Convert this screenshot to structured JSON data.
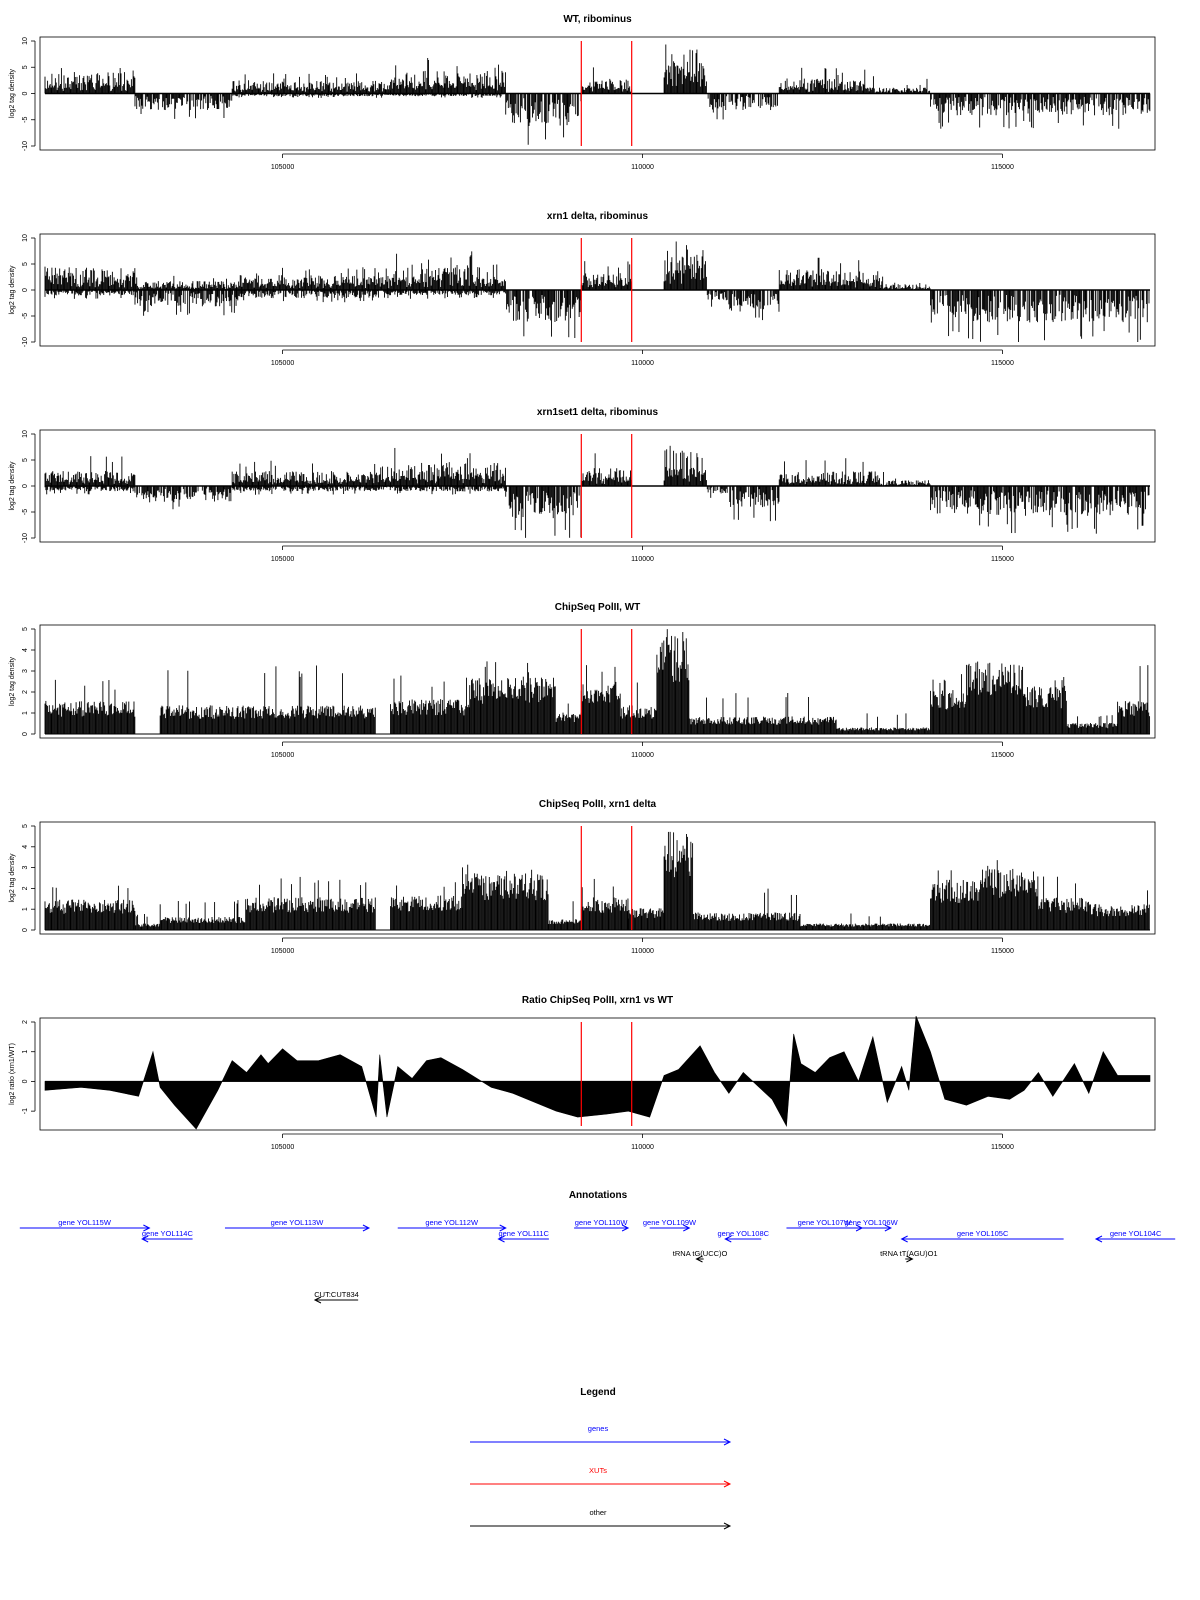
{
  "colors": {
    "gene": "#0000ff",
    "xut": "#ff0000",
    "other": "#000000",
    "marker": "#ff0000",
    "bar": "#000000"
  },
  "markers_x": [
    109150,
    109850
  ],
  "chart_data": [
    {
      "type": "bar",
      "title": "WT, ribominus",
      "ylabel": "log2 tag density",
      "xlim": [
        101700,
        117050
      ],
      "ylim": [
        -10,
        10
      ],
      "yticks": [
        "-10",
        "-5",
        "0",
        "5",
        "10"
      ],
      "xticks": [
        "105000",
        "110000",
        "115000"
      ],
      "style": "signed",
      "series": [
        {
          "values": [
            [
              101700,
              102950,
              3.6,
              5.5,
              0
            ],
            [
              102950,
              104300,
              0,
              0,
              -3.0
            ],
            [
              104300,
              106500,
              2.2,
              4.0,
              -0.5
            ],
            [
              106500,
              108100,
              3.8,
              7.0,
              -0.5
            ],
            [
              108100,
              109150,
              0,
              0,
              -6.0
            ],
            [
              109150,
              109850,
              2.5,
              5.0,
              0
            ],
            [
              109850,
              110300,
              0,
              0,
              0
            ],
            [
              110300,
              110900,
              7.5,
              11.0,
              0
            ],
            [
              110900,
              111000,
              0,
              0,
              -3.5
            ],
            [
              111000,
              111900,
              0,
              0,
              -3.0
            ],
            [
              111900,
              113100,
              2.5,
              5.0,
              0
            ],
            [
              113100,
              114000,
              1.0,
              3.5,
              0
            ],
            [
              114000,
              117050,
              0,
              0,
              -4.0
            ]
          ]
        }
      ]
    },
    {
      "type": "bar",
      "title": "xrn1 delta, ribominus",
      "ylabel": "log2 tag density",
      "xlim": [
        101700,
        117050
      ],
      "ylim": [
        -10,
        10
      ],
      "yticks": [
        "-10",
        "-5",
        "0",
        "5",
        "10"
      ],
      "xticks": [
        "105000",
        "110000",
        "115000"
      ],
      "style": "signed",
      "series": [
        {
          "values": [
            [
              101700,
              102950,
              3.8,
              6.0,
              -1.0
            ],
            [
              102950,
              104400,
              1.5,
              3.0,
              -3.0
            ],
            [
              104400,
              106500,
              2.5,
              4.5,
              -1.5
            ],
            [
              106500,
              108100,
              4.5,
              7.5,
              -1.0
            ],
            [
              108100,
              109150,
              0,
              0,
              -6.0
            ],
            [
              109150,
              109850,
              3.0,
              6.0,
              0
            ],
            [
              109850,
              110300,
              0,
              0,
              0
            ],
            [
              110300,
              110900,
              7.5,
              11.0,
              0
            ],
            [
              110900,
              111200,
              0,
              0,
              -2.0
            ],
            [
              111200,
              111900,
              0,
              0,
              -4.0
            ],
            [
              111900,
              113300,
              3.5,
              6.5,
              0
            ],
            [
              113300,
              114000,
              1.0,
              3.5,
              0
            ],
            [
              114000,
              117050,
              0,
              0,
              -6.0
            ]
          ]
        }
      ]
    },
    {
      "type": "bar",
      "title": "xrn1set1 delta, ribominus",
      "ylabel": "log2 tag density",
      "xlim": [
        101700,
        117050
      ],
      "ylim": [
        -10,
        10
      ],
      "yticks": [
        "-10",
        "-5",
        "0",
        "5",
        "10"
      ],
      "xticks": [
        "105000",
        "110000",
        "115000"
      ],
      "style": "signed",
      "series": [
        {
          "values": [
            [
              101700,
              102950,
              2.5,
              6.0,
              -1.0
            ],
            [
              102950,
              104300,
              0,
              2.5,
              -3.0
            ],
            [
              104300,
              106500,
              2.5,
              5.0,
              -1.0
            ],
            [
              106500,
              108100,
              4.0,
              7.5,
              -1.0
            ],
            [
              108100,
              109150,
              0,
              0,
              -6.0
            ],
            [
              109150,
              109850,
              3.0,
              6.5,
              0
            ],
            [
              109850,
              110300,
              0,
              0,
              0
            ],
            [
              110300,
              110900,
              6.0,
              9.0,
              0
            ],
            [
              110900,
              111200,
              0,
              0,
              -1.5
            ],
            [
              111200,
              111900,
              0,
              0,
              -4.0
            ],
            [
              111900,
              113300,
              2.5,
              6.0,
              0
            ],
            [
              113300,
              114000,
              1.0,
              3.0,
              0
            ],
            [
              114000,
              117050,
              0,
              0,
              -5.5
            ]
          ]
        }
      ]
    },
    {
      "type": "bar",
      "title": "ChipSeq PolII, WT",
      "ylabel": "log2 tag density",
      "xlim": [
        101700,
        117050
      ],
      "ylim": [
        0,
        5
      ],
      "yticks": [
        "0",
        "1",
        "2",
        "3",
        "4",
        "5"
      ],
      "xticks": [
        "105000",
        "110000",
        "115000"
      ],
      "style": "positive",
      "series": [
        {
          "values": [
            [
              101700,
              102950,
              1.5,
              2.6,
              0
            ],
            [
              102950,
              103300,
              0,
              0,
              0
            ],
            [
              103300,
              106300,
              1.3,
              3.3,
              0
            ],
            [
              106300,
              106500,
              0,
              0,
              0
            ],
            [
              106500,
              107600,
              1.6,
              2.8,
              0
            ],
            [
              107600,
              108800,
              2.6,
              3.6,
              0
            ],
            [
              108800,
              109150,
              1.0,
              1.5,
              0
            ],
            [
              109150,
              109700,
              2.5,
              3.5,
              0
            ],
            [
              109700,
              110200,
              1.3,
              2.5,
              0
            ],
            [
              110200,
              110650,
              4.5,
              5.2,
              0
            ],
            [
              110650,
              112700,
              0.8,
              2.0,
              0
            ],
            [
              112700,
              114000,
              0.3,
              1.0,
              0
            ],
            [
              114000,
              114500,
              2.0,
              3.0,
              0
            ],
            [
              114500,
              115300,
              3.3,
              4.0,
              0
            ],
            [
              115300,
              115900,
              2.2,
              3.0,
              0
            ],
            [
              115900,
              116600,
              0.5,
              1.0,
              0
            ],
            [
              116600,
              117050,
              1.5,
              3.3,
              0
            ]
          ]
        }
      ]
    },
    {
      "type": "bar",
      "title": "ChipSeq PolII, xrn1 delta",
      "ylabel": "log2 tag density",
      "xlim": [
        101700,
        117050
      ],
      "ylim": [
        0,
        5
      ],
      "yticks": [
        "0",
        "1",
        "2",
        "3",
        "4",
        "5"
      ],
      "xticks": [
        "105000",
        "110000",
        "115000"
      ],
      "style": "positive",
      "series": [
        {
          "values": [
            [
              101700,
              102950,
              1.4,
              2.3,
              0
            ],
            [
              102950,
              103300,
              0.3,
              0.8,
              0
            ],
            [
              103300,
              104500,
              0.6,
              1.5,
              0
            ],
            [
              104500,
              106300,
              1.5,
              2.6,
              0
            ],
            [
              106300,
              106500,
              0,
              0,
              0
            ],
            [
              106500,
              107500,
              1.6,
              2.3,
              0
            ],
            [
              107500,
              108700,
              2.6,
              3.2,
              0
            ],
            [
              108700,
              109150,
              0.5,
              1.5,
              0
            ],
            [
              109150,
              109800,
              1.5,
              2.5,
              0
            ],
            [
              109800,
              110300,
              1.0,
              2.5,
              0
            ],
            [
              110300,
              110700,
              4.5,
              4.9,
              0
            ],
            [
              110700,
              112200,
              0.8,
              2.0,
              0
            ],
            [
              112200,
              114000,
              0.3,
              0.8,
              0
            ],
            [
              114000,
              114700,
              2.3,
              3.0,
              0
            ],
            [
              114700,
              115500,
              2.8,
              3.5,
              0
            ],
            [
              115500,
              116200,
              1.5,
              2.8,
              0
            ],
            [
              116200,
              117050,
              1.2,
              2.0,
              0
            ]
          ]
        }
      ]
    },
    {
      "type": "area",
      "title": "Ratio ChipSeq PolII, xrn1 vs WT",
      "ylabel": "log2 ratio (xrn1/WT)",
      "xlim": [
        101700,
        117050
      ],
      "ylim": [
        -1.5,
        2.0
      ],
      "yticks": [
        "-1",
        "0",
        "1",
        "2"
      ],
      "xticks": [
        "105000",
        "110000",
        "115000"
      ],
      "series": [
        {
          "x": [
            101700,
            102200,
            102600,
            103000,
            103200,
            103300,
            103500,
            103800,
            104100,
            104300,
            104500,
            104700,
            104800,
            105000,
            105200,
            105500,
            105800,
            106100,
            106300,
            106350,
            106450,
            106600,
            106800,
            107000,
            107200,
            107500,
            107900,
            108200,
            108500,
            108800,
            109100,
            109500,
            109800,
            110100,
            110300,
            110500,
            110800,
            111000,
            111200,
            111400,
            111800,
            112000,
            112100,
            112200,
            112400,
            112600,
            112800,
            113000,
            113200,
            113400,
            113600,
            113700,
            113800,
            114000,
            114200,
            114500,
            114800,
            115100,
            115300,
            115500,
            115700,
            116000,
            116200,
            116400,
            116600,
            117050
          ],
          "y": [
            -0.3,
            -0.2,
            -0.3,
            -0.5,
            1.0,
            -0.2,
            -0.8,
            -1.6,
            -0.3,
            0.7,
            0.3,
            0.9,
            0.6,
            1.1,
            0.7,
            0.7,
            0.9,
            0.5,
            -1.2,
            0.9,
            -1.2,
            0.5,
            0.1,
            0.7,
            0.8,
            0.4,
            -0.2,
            -0.4,
            -0.7,
            -1.0,
            -1.2,
            -1.1,
            -1.0,
            -1.2,
            0.2,
            0.4,
            1.2,
            0.3,
            -0.4,
            0.3,
            -0.6,
            -1.5,
            1.6,
            0.6,
            0.3,
            0.8,
            1.0,
            0.0,
            1.5,
            -0.7,
            0.5,
            -0.3,
            2.2,
            1.0,
            -0.6,
            -0.8,
            -0.5,
            -0.6,
            -0.3,
            0.3,
            -0.5,
            0.6,
            -0.4,
            1.0,
            0.2,
            0.2
          ]
        }
      ]
    }
  ],
  "annotations": {
    "title": "Annotations",
    "features": [
      {
        "label": "gene YOL115W",
        "kind": "gene",
        "dir": "right",
        "x1": 101350,
        "x2": 103150,
        "row": 0
      },
      {
        "label": "gene YOL114C",
        "kind": "gene",
        "dir": "left",
        "x1": 103050,
        "x2": 103750,
        "row": 1
      },
      {
        "label": "gene YOL113W",
        "kind": "gene",
        "dir": "right",
        "x1": 104200,
        "x2": 106200,
        "row": 0
      },
      {
        "label": "gene YOL112W",
        "kind": "gene",
        "dir": "right",
        "x1": 106600,
        "x2": 108100,
        "row": 0
      },
      {
        "label": "gene YOL111C",
        "kind": "gene",
        "dir": "left",
        "x1": 108000,
        "x2": 108700,
        "row": 1
      },
      {
        "label": "gene YOL110W",
        "kind": "gene",
        "dir": "right",
        "x1": 109050,
        "x2": 109800,
        "row": 0
      },
      {
        "label": "gene YOL109W",
        "kind": "gene",
        "dir": "right",
        "x1": 110100,
        "x2": 110650,
        "row": 0
      },
      {
        "label": "gene YOL108C",
        "kind": "gene",
        "dir": "left",
        "x1": 111150,
        "x2": 111650,
        "row": 1
      },
      {
        "label": "gene YOL107W",
        "kind": "gene",
        "dir": "right",
        "x1": 112000,
        "x2": 113050,
        "row": 0
      },
      {
        "label": "gene YOL106W",
        "kind": "gene",
        "dir": "right",
        "x1": 112900,
        "x2": 113450,
        "row": 0
      },
      {
        "label": "gene YOL105C",
        "kind": "gene",
        "dir": "left",
        "x1": 113600,
        "x2": 115850,
        "row": 1
      },
      {
        "label": "gene YOL104C",
        "kind": "gene",
        "dir": "left",
        "x1": 116300,
        "x2": 117400,
        "row": 1
      },
      {
        "label": "tRNA tG(UCC)O",
        "kind": "other",
        "dir": "left",
        "x1": 110750,
        "x2": 110850,
        "row": 2
      },
      {
        "label": "tRNA tT(AGU)O1",
        "kind": "other",
        "dir": "right",
        "x1": 113650,
        "x2": 113750,
        "row": 2
      },
      {
        "label": "CUT:CUT834",
        "kind": "other",
        "dir": "left",
        "x1": 105450,
        "x2": 106050,
        "row": 3
      }
    ]
  },
  "legend": {
    "title": "Legend",
    "items": [
      {
        "label": "genes",
        "kind": "gene"
      },
      {
        "label": "XUTs",
        "kind": "xut"
      },
      {
        "label": "other",
        "kind": "other"
      }
    ]
  }
}
